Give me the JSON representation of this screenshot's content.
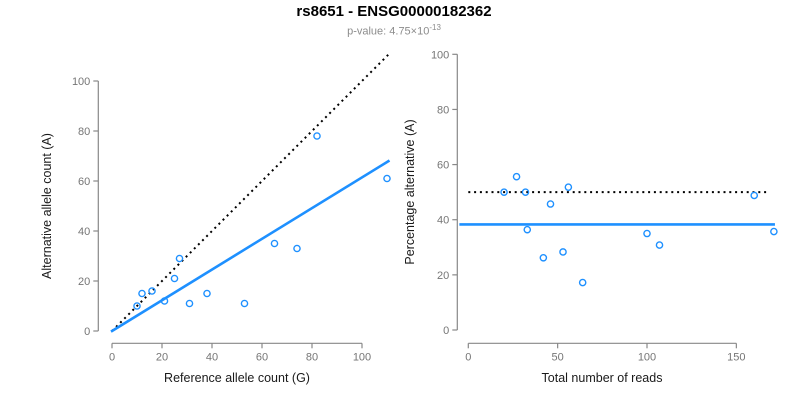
{
  "header": {
    "title": "rs8651 - ENSG00000182362",
    "subtitle_base": "p-value: 4.75×10",
    "subtitle_exp": "-13"
  },
  "colors": {
    "accent": "#1E90FF",
    "dotted_line": "#000000",
    "axis": "#888888",
    "tick_text": "#757575",
    "axis_title_text": "#1a1a1a",
    "subtitle_text": "#8c8c8c"
  },
  "chart_data": [
    {
      "type": "scatter",
      "panel": "left",
      "xlabel": "Reference allele count (G)",
      "ylabel": "Alternative allele count (A)",
      "xticks": [
        0,
        20,
        40,
        60,
        80,
        100
      ],
      "yticks": [
        0,
        20,
        40,
        60,
        80,
        100
      ],
      "xlim": [
        -4,
        115
      ],
      "ylim": [
        -4,
        112
      ],
      "grid": false,
      "legend": "none",
      "points": [
        [
          10,
          10
        ],
        [
          12,
          15
        ],
        [
          16,
          16
        ],
        [
          21,
          12
        ],
        [
          25,
          21
        ],
        [
          27,
          29
        ],
        [
          31,
          11
        ],
        [
          38,
          15
        ],
        [
          53,
          11
        ],
        [
          65,
          35
        ],
        [
          74,
          33
        ],
        [
          82,
          78
        ],
        [
          110,
          61
        ]
      ],
      "lines": [
        {
          "name": "identity",
          "style": "dotted",
          "color": "#000000",
          "x1": 0,
          "y1": 0,
          "x2": 110.5,
          "y2": 110.5
        },
        {
          "name": "regression",
          "style": "solid",
          "color": "#1E90FF",
          "x1": -0.4,
          "y1": -0.25,
          "x2": 111,
          "y2": 68.2
        }
      ]
    },
    {
      "type": "scatter",
      "panel": "right",
      "xlabel": "Total number of reads",
      "ylabel": "Percentage alternative (A)",
      "xticks": [
        0,
        50,
        100,
        150
      ],
      "yticks": [
        0,
        20,
        40,
        60,
        80,
        100
      ],
      "xlim": [
        -6,
        178
      ],
      "ylim": [
        0,
        100
      ],
      "grid": false,
      "legend": "none",
      "points": [
        [
          20,
          50
        ],
        [
          27,
          55.6
        ],
        [
          32,
          50
        ],
        [
          33,
          36.4
        ],
        [
          46,
          45.7
        ],
        [
          56,
          51.8
        ],
        [
          42,
          26.2
        ],
        [
          53,
          28.3
        ],
        [
          64,
          17.2
        ],
        [
          100,
          35
        ],
        [
          107,
          30.8
        ],
        [
          160,
          48.8
        ],
        [
          171,
          35.7
        ]
      ],
      "lines": [
        {
          "name": "fifty-percent",
          "style": "dotted",
          "color": "#000000",
          "x1": 0,
          "y1": 50,
          "x2": 168,
          "y2": 50
        },
        {
          "name": "mean-percentage",
          "style": "solid",
          "color": "#1E90FF",
          "x1": -5,
          "y1": 38.3,
          "x2": 171.6,
          "y2": 38.3
        }
      ]
    }
  ]
}
